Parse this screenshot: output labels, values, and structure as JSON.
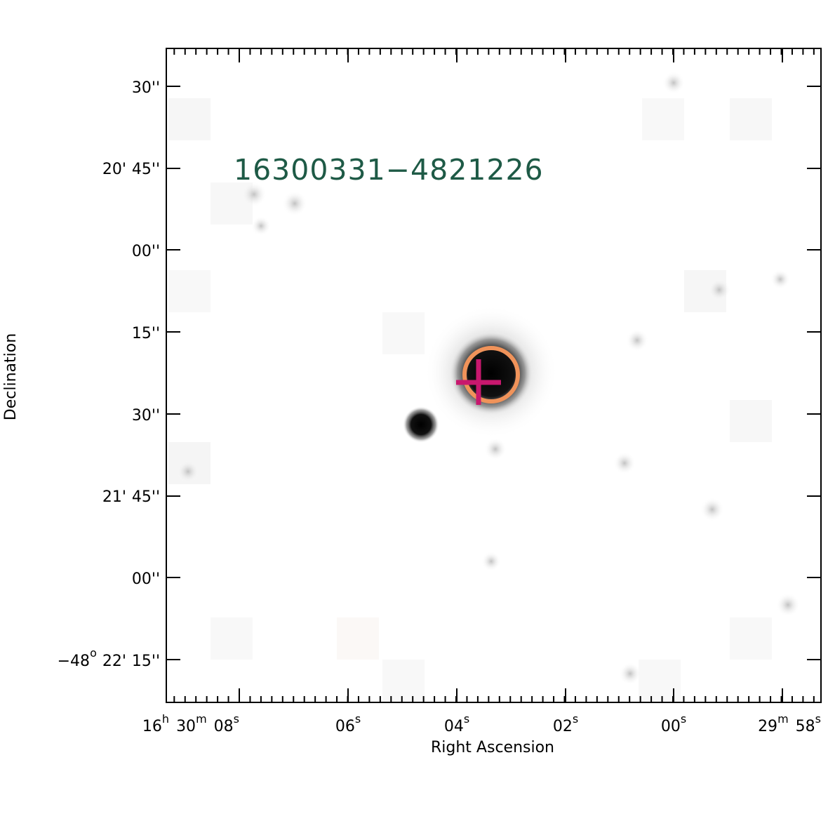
{
  "source_name": "16300331−4821226",
  "axes": {
    "xlabel": "Right Ascension",
    "ylabel": "Declination",
    "ra_ticks": [
      {
        "h": "16",
        "m": "30",
        "s": "08"
      },
      {
        "s": "06"
      },
      {
        "s": "04"
      },
      {
        "s": "02"
      },
      {
        "s": "00"
      },
      {
        "m": "29",
        "s": "58"
      }
    ],
    "dec_ticks": [
      {
        "sec": "30''"
      },
      {
        "arcmin": "20'",
        "sec": "45''"
      },
      {
        "sec": "00''"
      },
      {
        "sec": "15''"
      },
      {
        "sec": "30''"
      },
      {
        "arcmin": "21'",
        "sec": "45''"
      },
      {
        "sec": "00''"
      },
      {
        "deg": "−48",
        "arcmin": "22'",
        "sec": "15''"
      }
    ],
    "units": {
      "h": "h",
      "m": "m",
      "s": "s",
      "deg": "o"
    }
  },
  "markers": {
    "circle_color": "#f0935a",
    "cross_color": "#c8186e"
  },
  "colors": {
    "frame": "#000000",
    "label": "#1e5a46",
    "background": "#ffffff"
  }
}
